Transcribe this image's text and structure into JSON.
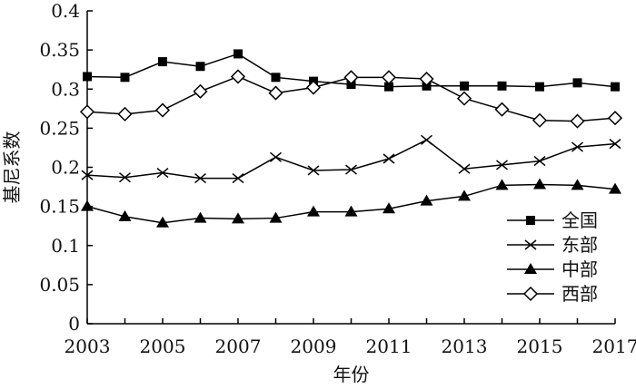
{
  "chart_data": {
    "type": "line",
    "title": "",
    "xlabel": "年份",
    "ylabel": "基尼系数",
    "x": [
      2003,
      2004,
      2005,
      2006,
      2007,
      2008,
      2009,
      2010,
      2011,
      2012,
      2013,
      2014,
      2015,
      2016,
      2017
    ],
    "xticks": [
      "2003",
      "2005",
      "2007",
      "2009",
      "2011",
      "2013",
      "2015",
      "2017"
    ],
    "xlim": [
      2003,
      2017
    ],
    "ylim": [
      0,
      0.4
    ],
    "yticks": [
      "0",
      "0.05",
      "0.1",
      "0.15",
      "0.2",
      "0.25",
      "0.3",
      "0.35",
      "0.4"
    ],
    "grid": false,
    "legend_position": "bottom-right",
    "series": [
      {
        "name": "全国",
        "marker": "filled-square",
        "values": [
          0.316,
          0.315,
          0.335,
          0.329,
          0.345,
          0.315,
          0.31,
          0.306,
          0.303,
          0.304,
          0.304,
          0.304,
          0.303,
          0.308,
          0.303
        ]
      },
      {
        "name": "东部",
        "marker": "x",
        "values": [
          0.19,
          0.187,
          0.193,
          0.186,
          0.186,
          0.213,
          0.196,
          0.197,
          0.211,
          0.235,
          0.198,
          0.203,
          0.208,
          0.226,
          0.23
        ]
      },
      {
        "name": "中部",
        "marker": "filled-triangle",
        "values": [
          0.15,
          0.137,
          0.129,
          0.135,
          0.134,
          0.135,
          0.143,
          0.143,
          0.147,
          0.157,
          0.163,
          0.177,
          0.178,
          0.177,
          0.172
        ]
      },
      {
        "name": "西部",
        "marker": "open-diamond",
        "values": [
          0.271,
          0.268,
          0.273,
          0.297,
          0.316,
          0.295,
          0.302,
          0.315,
          0.315,
          0.313,
          0.288,
          0.274,
          0.26,
          0.259,
          0.263
        ]
      }
    ]
  }
}
